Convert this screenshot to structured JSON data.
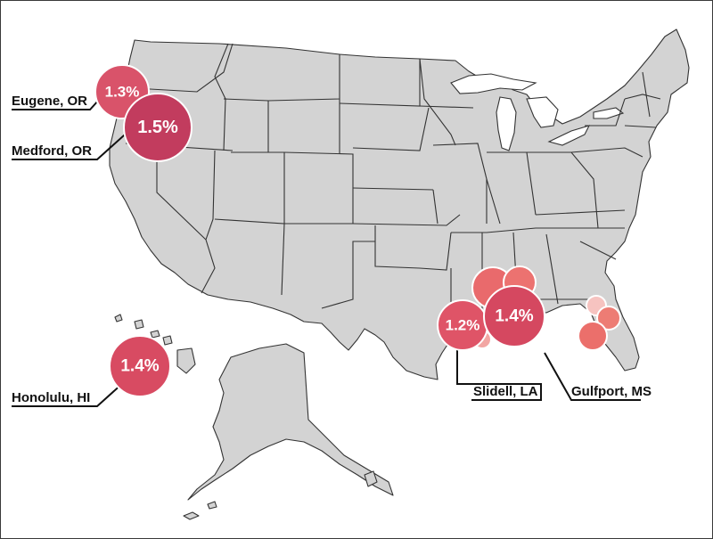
{
  "map": {
    "region": "United States",
    "land_color": "#d3d3d3",
    "border_color": "#333333",
    "labeled_markers": [
      {
        "city": "Eugene, OR",
        "value_label": "1.3%",
        "value": 1.3,
        "color": "#d9536a"
      },
      {
        "city": "Medford, OR",
        "value_label": "1.5%",
        "value": 1.5,
        "color": "#c23c5e"
      },
      {
        "city": "Honolulu, HI",
        "value_label": "1.4%",
        "value": 1.4,
        "color": "#d84b62"
      },
      {
        "city": "Slidell, LA",
        "value_label": "1.2%",
        "value": 1.2,
        "color": "#df5467"
      },
      {
        "city": "Gulfport, MS",
        "value_label": "1.4%",
        "value": 1.4,
        "color": "#d54860"
      }
    ],
    "unlabeled_markers": [
      {
        "color": "#e96a6c"
      },
      {
        "color": "#ec7270"
      },
      {
        "color": "#f2a6a3"
      },
      {
        "color": "#f6c3c0"
      },
      {
        "color": "#ed7c74"
      },
      {
        "color": "#eb6f6b"
      }
    ]
  }
}
